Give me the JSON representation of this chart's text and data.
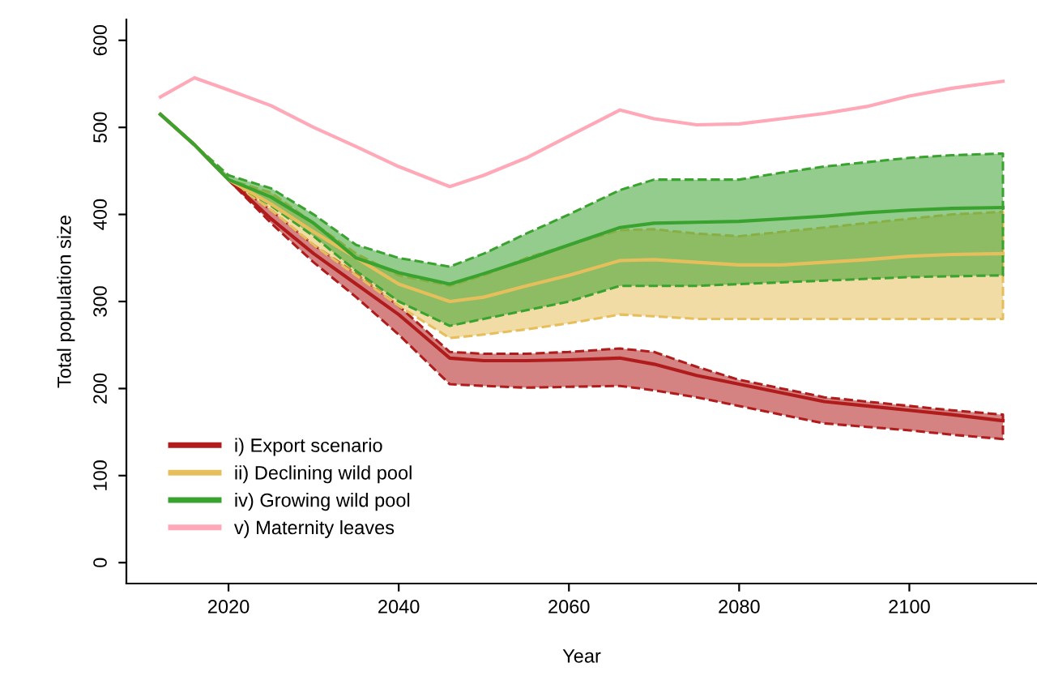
{
  "chart_data": {
    "type": "line",
    "xlabel": "Year",
    "ylabel": "Total population size",
    "xlim": [
      2008,
      2115
    ],
    "ylim": [
      -24,
      624
    ],
    "xticks": [
      2020,
      2040,
      2060,
      2080,
      2100
    ],
    "yticks": [
      0,
      100,
      200,
      300,
      400,
      500,
      600
    ],
    "grid": false,
    "legend": "bottom left",
    "x": [
      2012,
      2016,
      2020,
      2025,
      2030,
      2035,
      2040,
      2046,
      2050,
      2055,
      2060,
      2066,
      2070,
      2075,
      2080,
      2085,
      2090,
      2095,
      2100,
      2105,
      2111
    ],
    "series": [
      {
        "name": "i) Export scenario",
        "color": "#b01c1c",
        "values": [
          515,
          480,
          440,
          395,
          355,
          320,
          285,
          235,
          232,
          232,
          233,
          235,
          228,
          215,
          205,
          195,
          185,
          180,
          175,
          170,
          163
        ],
        "lower": [
          515,
          480,
          440,
          390,
          345,
          305,
          262,
          205,
          203,
          201,
          202,
          203,
          198,
          190,
          180,
          170,
          160,
          156,
          152,
          147,
          142
        ],
        "upper": [
          515,
          480,
          440,
          405,
          365,
          332,
          295,
          242,
          240,
          240,
          242,
          246,
          242,
          225,
          210,
          200,
          190,
          185,
          180,
          175,
          170
        ]
      },
      {
        "name": "ii) Declining wild pool",
        "color": "#e6bf5c",
        "values": [
          515,
          480,
          440,
          412,
          380,
          350,
          320,
          300,
          305,
          318,
          330,
          347,
          348,
          345,
          342,
          342,
          345,
          348,
          352,
          354,
          355
        ],
        "lower": [
          515,
          480,
          440,
          405,
          365,
          330,
          295,
          258,
          262,
          268,
          275,
          285,
          283,
          280,
          280,
          280,
          280,
          280,
          280,
          280,
          280
        ],
        "upper": [
          515,
          480,
          440,
          425,
          390,
          355,
          330,
          318,
          330,
          350,
          365,
          382,
          383,
          378,
          375,
          380,
          385,
          390,
          395,
          400,
          403
        ]
      },
      {
        "name": "iv) Growing wild pool",
        "color": "#3aa32f",
        "values": [
          515,
          480,
          440,
          420,
          390,
          350,
          333,
          320,
          332,
          348,
          365,
          385,
          390,
          391,
          392,
          395,
          398,
          402,
          405,
          407,
          408
        ],
        "lower": [
          515,
          480,
          440,
          410,
          375,
          335,
          300,
          272,
          280,
          290,
          300,
          318,
          318,
          318,
          320,
          322,
          324,
          326,
          328,
          329,
          330
        ],
        "upper": [
          515,
          480,
          445,
          430,
          400,
          365,
          350,
          340,
          355,
          378,
          400,
          428,
          440,
          440,
          440,
          448,
          455,
          460,
          465,
          468,
          470
        ]
      },
      {
        "name": "v) Maternity leaves",
        "color": "#ffa8b8",
        "type": "line",
        "values": [
          535,
          557,
          543,
          525,
          500,
          478,
          455,
          432,
          445,
          465,
          490,
          520,
          510,
          503,
          504,
          510,
          516,
          524,
          536,
          545,
          553
        ]
      }
    ]
  }
}
